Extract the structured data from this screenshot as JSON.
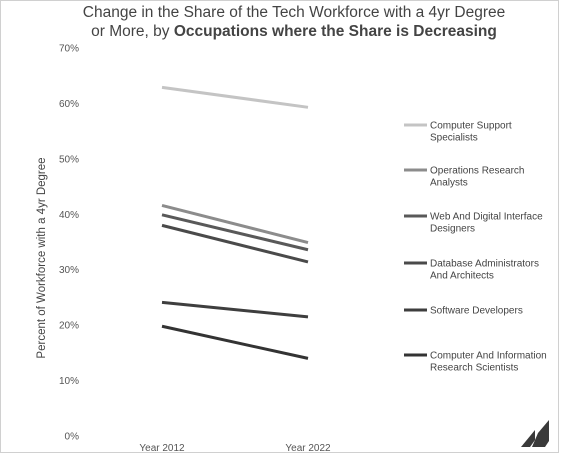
{
  "chart_data": {
    "type": "line",
    "title_line1": "Change in the Share of the Tech Workforce with a 4yr Degree",
    "title_line2_prefix": "or More, by ",
    "title_line2_bold": "Occupations where the Share is Decreasing",
    "ylabel": "Percent of Workforce with a 4yr Degree",
    "xlabel": "",
    "x": [
      "Year 2012",
      "Year 2022"
    ],
    "y_ticks": [
      "0%",
      "10%",
      "20%",
      "30%",
      "40%",
      "50%",
      "60%",
      "70%"
    ],
    "ylim": [
      0,
      70
    ],
    "grid": false,
    "legend_position": "right",
    "series": [
      {
        "name": "Computer Support Specialists",
        "values": [
          62.9,
          59.3
        ],
        "color": "#c4c4c4",
        "label_lines": [
          "Computer Support",
          "Specialists"
        ]
      },
      {
        "name": "Operations Research Analysts",
        "values": [
          41.6,
          34.9
        ],
        "color": "#8c8c8c",
        "label_lines": [
          "Operations Research",
          "Analysts"
        ]
      },
      {
        "name": "Web And Digital Interface Designers",
        "values": [
          39.9,
          33.6
        ],
        "color": "#595959",
        "label_lines": [
          "Web And Digital Interface",
          "Designers"
        ]
      },
      {
        "name": "Database Administrators And Architects",
        "values": [
          38.0,
          31.4
        ],
        "color": "#4a4a4a",
        "label_lines": [
          "Database Administrators",
          "And Architects"
        ]
      },
      {
        "name": "Software Developers",
        "values": [
          24.1,
          21.5
        ],
        "color": "#3e3e3e",
        "label_lines": [
          "Software Developers"
        ]
      },
      {
        "name": "Computer And Information Research Scientists",
        "values": [
          19.8,
          14.0
        ],
        "color": "#333333",
        "label_lines": [
          "Computer And Information",
          "Research Scientists"
        ]
      }
    ]
  },
  "logo": {
    "name": "brand-logo",
    "color": "#3a3a3a"
  }
}
